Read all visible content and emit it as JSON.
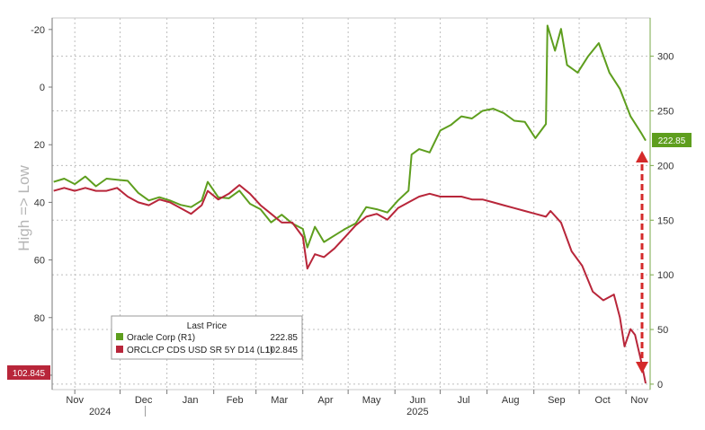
{
  "chart_data": {
    "type": "line",
    "ylabel": "High => Low",
    "x_ticks": [
      {
        "label": "Nov",
        "sub": "2024",
        "date": "2024-11-01"
      },
      {
        "label": "Dec",
        "sub": "",
        "date": "2024-12-01"
      },
      {
        "label": "Jan",
        "sub": "",
        "date": "2025-01-01"
      },
      {
        "label": "Feb",
        "sub": "",
        "date": "2025-02-01"
      },
      {
        "label": "Mar",
        "sub": "",
        "date": "2025-03-01"
      },
      {
        "label": "Apr",
        "sub": "",
        "date": "2025-04-01"
      },
      {
        "label": "May",
        "sub": "",
        "date": "2025-05-01"
      },
      {
        "label": "Jun",
        "sub": "2025",
        "date": "2025-06-01"
      },
      {
        "label": "Jul",
        "sub": "",
        "date": "2025-07-01"
      },
      {
        "label": "Aug",
        "sub": "",
        "date": "2025-08-01"
      },
      {
        "label": "Sep",
        "sub": "",
        "date": "2025-09-01"
      },
      {
        "label": "Oct",
        "sub": "",
        "date": "2025-10-01"
      },
      {
        "label": "Nov",
        "sub": "",
        "date": "2025-11-01"
      }
    ],
    "xlim": [
      "2024-10-17",
      "2025-11-17"
    ],
    "left_axis": {
      "ticks": [
        "-20",
        "0",
        "20",
        "40",
        "60",
        "80",
        "100"
      ],
      "ylim": [
        105,
        -24
      ],
      "inverted": true
    },
    "right_axis": {
      "ticks": [
        "0",
        "50",
        "100",
        "150",
        "200",
        "250",
        "300"
      ],
      "ylim": [
        -5,
        335
      ]
    },
    "legend": {
      "title": "Last Price",
      "entries": [
        {
          "label": "Oracle Corp  (R1)",
          "value": "222.85",
          "color": "#5e9e1e"
        },
        {
          "label": "ORCLCP CDS USD SR 5Y D14  (L1)",
          "value": "102.845",
          "color": "#b8263a"
        }
      ]
    },
    "badges": {
      "right": "222.85",
      "left": "102.845"
    },
    "series": [
      {
        "name": "Oracle Corp  (R1)",
        "axis": "right",
        "color": "#5e9e1e",
        "points": [
          [
            "2024-10-18",
            185
          ],
          [
            "2024-10-25",
            188
          ],
          [
            "2024-11-01",
            183
          ],
          [
            "2024-11-08",
            190
          ],
          [
            "2024-11-15",
            181
          ],
          [
            "2024-11-22",
            188
          ],
          [
            "2024-11-29",
            187
          ],
          [
            "2024-12-06",
            186
          ],
          [
            "2024-12-13",
            175
          ],
          [
            "2024-12-20",
            168
          ],
          [
            "2024-12-27",
            171
          ],
          [
            "2025-01-03",
            168
          ],
          [
            "2025-01-10",
            164
          ],
          [
            "2025-01-17",
            162
          ],
          [
            "2025-01-24",
            168
          ],
          [
            "2025-01-28",
            185
          ],
          [
            "2025-02-04",
            171
          ],
          [
            "2025-02-11",
            170
          ],
          [
            "2025-02-18",
            177
          ],
          [
            "2025-02-25",
            165
          ],
          [
            "2025-03-04",
            160
          ],
          [
            "2025-03-11",
            148
          ],
          [
            "2025-03-18",
            155
          ],
          [
            "2025-03-25",
            147
          ],
          [
            "2025-04-01",
            142
          ],
          [
            "2025-04-04",
            125
          ],
          [
            "2025-04-09",
            144
          ],
          [
            "2025-04-15",
            130
          ],
          [
            "2025-04-22",
            136
          ],
          [
            "2025-04-29",
            142
          ],
          [
            "2025-05-06",
            147
          ],
          [
            "2025-05-13",
            162
          ],
          [
            "2025-05-20",
            160
          ],
          [
            "2025-05-27",
            157
          ],
          [
            "2025-06-03",
            168
          ],
          [
            "2025-06-10",
            177
          ],
          [
            "2025-06-12",
            210
          ],
          [
            "2025-06-17",
            215
          ],
          [
            "2025-06-24",
            212
          ],
          [
            "2025-07-01",
            232
          ],
          [
            "2025-07-08",
            237
          ],
          [
            "2025-07-15",
            245
          ],
          [
            "2025-07-22",
            243
          ],
          [
            "2025-07-29",
            250
          ],
          [
            "2025-08-05",
            252
          ],
          [
            "2025-08-12",
            248
          ],
          [
            "2025-08-19",
            241
          ],
          [
            "2025-08-26",
            240
          ],
          [
            "2025-09-02",
            225
          ],
          [
            "2025-09-09",
            238
          ],
          [
            "2025-09-10",
            328
          ],
          [
            "2025-09-15",
            305
          ],
          [
            "2025-09-19",
            325
          ],
          [
            "2025-09-23",
            292
          ],
          [
            "2025-09-30",
            285
          ],
          [
            "2025-10-07",
            300
          ],
          [
            "2025-10-14",
            312
          ],
          [
            "2025-10-21",
            285
          ],
          [
            "2025-10-28",
            270
          ],
          [
            "2025-11-04",
            245
          ],
          [
            "2025-11-11",
            230
          ],
          [
            "2025-11-14",
            222.85
          ]
        ]
      },
      {
        "name": "ORCLCP CDS USD SR 5Y D14  (L1)",
        "axis": "left",
        "color": "#b8263a",
        "points": [
          [
            "2024-10-18",
            36
          ],
          [
            "2024-10-25",
            35
          ],
          [
            "2024-11-01",
            36
          ],
          [
            "2024-11-08",
            35
          ],
          [
            "2024-11-15",
            36
          ],
          [
            "2024-11-22",
            36
          ],
          [
            "2024-11-29",
            35
          ],
          [
            "2024-12-06",
            38
          ],
          [
            "2024-12-13",
            40
          ],
          [
            "2024-12-20",
            41
          ],
          [
            "2024-12-27",
            39
          ],
          [
            "2025-01-03",
            40
          ],
          [
            "2025-01-10",
            42
          ],
          [
            "2025-01-17",
            44
          ],
          [
            "2025-01-24",
            41
          ],
          [
            "2025-01-28",
            36
          ],
          [
            "2025-02-04",
            39
          ],
          [
            "2025-02-11",
            37
          ],
          [
            "2025-02-18",
            34
          ],
          [
            "2025-02-25",
            37
          ],
          [
            "2025-03-04",
            41
          ],
          [
            "2025-03-11",
            44
          ],
          [
            "2025-03-18",
            47
          ],
          [
            "2025-03-25",
            47
          ],
          [
            "2025-04-01",
            52
          ],
          [
            "2025-04-04",
            63
          ],
          [
            "2025-04-09",
            58
          ],
          [
            "2025-04-15",
            59
          ],
          [
            "2025-04-22",
            56
          ],
          [
            "2025-04-29",
            52
          ],
          [
            "2025-05-06",
            48
          ],
          [
            "2025-05-13",
            45
          ],
          [
            "2025-05-20",
            44
          ],
          [
            "2025-05-27",
            46
          ],
          [
            "2025-06-03",
            42
          ],
          [
            "2025-06-10",
            40
          ],
          [
            "2025-06-17",
            38
          ],
          [
            "2025-06-24",
            37
          ],
          [
            "2025-07-01",
            38
          ],
          [
            "2025-07-08",
            38
          ],
          [
            "2025-07-15",
            38
          ],
          [
            "2025-07-22",
            39
          ],
          [
            "2025-07-29",
            39
          ],
          [
            "2025-08-05",
            40
          ],
          [
            "2025-08-12",
            41
          ],
          [
            "2025-08-19",
            42
          ],
          [
            "2025-08-26",
            43
          ],
          [
            "2025-09-02",
            44
          ],
          [
            "2025-09-09",
            45
          ],
          [
            "2025-09-12",
            43
          ],
          [
            "2025-09-19",
            47
          ],
          [
            "2025-09-26",
            57
          ],
          [
            "2025-10-03",
            62
          ],
          [
            "2025-10-10",
            71
          ],
          [
            "2025-10-17",
            74
          ],
          [
            "2025-10-24",
            72
          ],
          [
            "2025-10-28",
            80
          ],
          [
            "2025-10-31",
            90
          ],
          [
            "2025-11-04",
            84
          ],
          [
            "2025-11-07",
            86
          ],
          [
            "2025-11-11",
            95
          ],
          [
            "2025-11-14",
            102.845
          ]
        ]
      }
    ]
  }
}
